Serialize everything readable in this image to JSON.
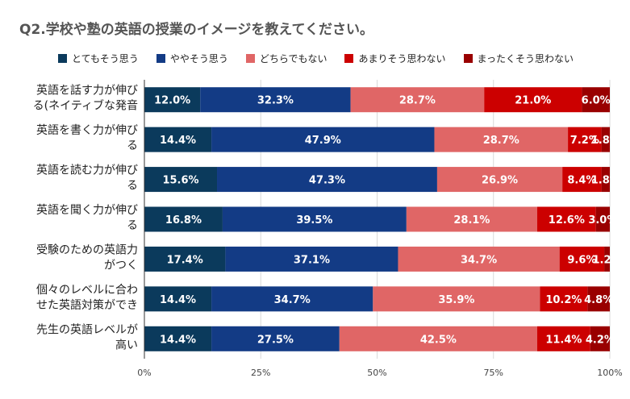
{
  "title": "Q2.学校や塾の英語の授業のイメージを教えてください。",
  "colors": [
    "#0b3a5c",
    "#133b85",
    "#e06666",
    "#cc0000",
    "#990000"
  ],
  "chart_data": {
    "type": "bar",
    "orientation": "horizontal",
    "stacked": true,
    "percent": true,
    "title": "Q2.学校や塾の英語の授業のイメージを教えてください。",
    "legend_position": "top",
    "grid": true,
    "xlim": [
      0,
      100
    ],
    "x_ticks": [
      "0%",
      "25%",
      "50%",
      "75%",
      "100%"
    ],
    "categories": [
      [
        "英語を話す力が伸び",
        "る(ネイティブな発音"
      ],
      [
        "英語を書く力が伸び",
        "る"
      ],
      [
        "英語を読む力が伸び",
        "る"
      ],
      [
        "英語を聞く力が伸び",
        "る"
      ],
      [
        "受験のための英語力",
        "がつく"
      ],
      [
        "個々のレベルに合わ",
        "せた英語対策ができ"
      ],
      [
        "先生の英語レベルが",
        "高い"
      ]
    ],
    "series": [
      {
        "name": "とてもそう思う",
        "values": [
          12.0,
          14.4,
          15.6,
          16.8,
          17.4,
          14.4,
          14.4
        ],
        "labels": [
          "12.0%",
          "14.4%",
          "15.6%",
          "16.8%",
          "17.4%",
          "14.4%",
          "14.4%"
        ]
      },
      {
        "name": "ややそう思う",
        "values": [
          32.3,
          47.9,
          47.3,
          39.5,
          37.1,
          34.7,
          27.5
        ],
        "labels": [
          "32.3%",
          "47.9%",
          "47.3%",
          "39.5%",
          "37.1%",
          "34.7%",
          "27.5%"
        ]
      },
      {
        "name": "どちらでもない",
        "values": [
          28.7,
          28.7,
          26.9,
          28.1,
          34.7,
          35.9,
          42.5
        ],
        "labels": [
          "28.7%",
          "28.7%",
          "26.9%",
          "28.1%",
          "34.7%",
          "35.9%",
          "42.5%"
        ]
      },
      {
        "name": "あまりそう思わない",
        "values": [
          21.0,
          7.2,
          8.4,
          12.6,
          9.6,
          10.2,
          11.4
        ],
        "labels": [
          "21.0%",
          "7.2%",
          "8.4%",
          "12.6%",
          "9.6%",
          "10.2%",
          "11.4%"
        ]
      },
      {
        "name": "まったくそう思わない",
        "values": [
          6.0,
          1.8,
          1.8,
          3.0,
          1.2,
          4.8,
          4.2
        ],
        "labels": [
          "6.0%",
          "1.8%",
          "1.8%",
          "3.0%",
          "1.2%",
          "4.8%",
          "4.2%"
        ]
      }
    ]
  }
}
